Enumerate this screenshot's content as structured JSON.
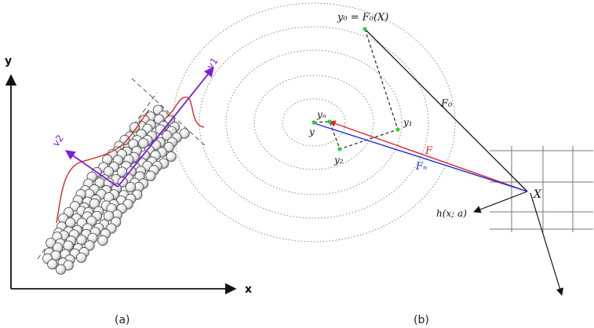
{
  "panel_a": {
    "axis_y_label": "y",
    "axis_x_label": "x",
    "vector_1_label": "v1",
    "vector_2_label": "v2",
    "caption": "(a)",
    "colors": {
      "vector": "#7b1fd6",
      "curve": "#d42a1e",
      "axis": "#111111",
      "dashed": "#555555"
    }
  },
  "panel_b": {
    "label_y0_eq": "y₀ = F₀(X)",
    "label_F0": "F₀",
    "label_yn": "yₙ",
    "label_y": "y",
    "label_y1": "y₁",
    "label_y2": "y₂",
    "label_F": "F",
    "label_Fn": "Fₙ",
    "label_X": "X",
    "label_h": "h(x; a)",
    "caption": "(b)",
    "colors": {
      "F": "#e02020",
      "Fn": "#1a2fe0",
      "point": "#33cc33",
      "grid": "#777777"
    }
  }
}
